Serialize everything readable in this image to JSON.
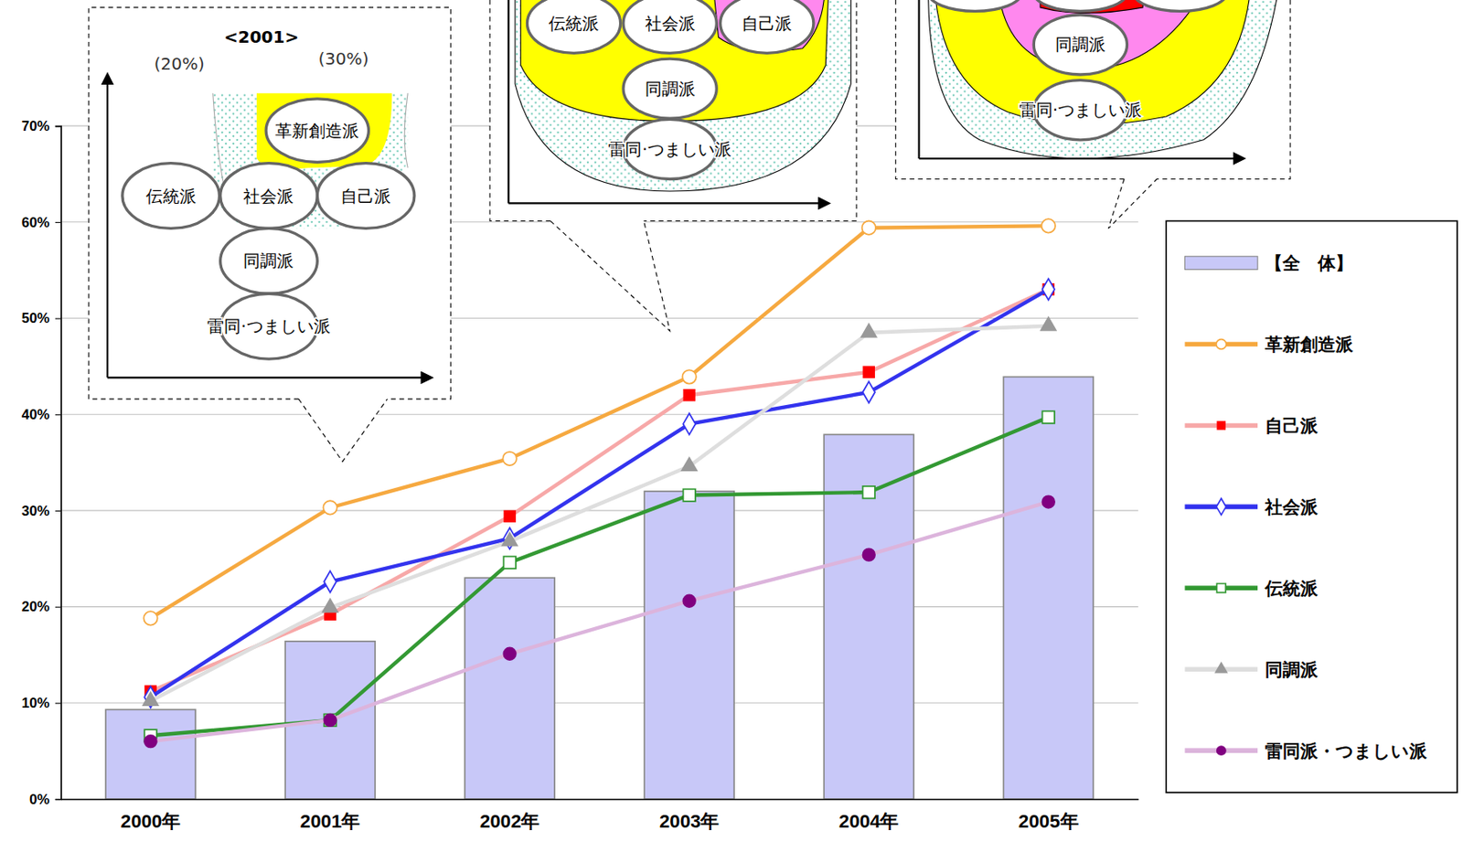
{
  "chart_data": {
    "type": "bar",
    "categories": [
      "2000年",
      "2001年",
      "2002年",
      "2003年",
      "2004年",
      "2005年"
    ],
    "ylim": [
      0,
      70
    ],
    "yticks": [
      {
        "value": 0,
        "label": "0%"
      },
      {
        "value": 10,
        "label": "10%"
      },
      {
        "value": 20,
        "label": "20%"
      },
      {
        "value": 30,
        "label": "30%"
      },
      {
        "value": 40,
        "label": "40%"
      },
      {
        "value": 50,
        "label": "50%"
      },
      {
        "value": 60,
        "label": "60%"
      },
      {
        "value": 70,
        "label": "70%"
      }
    ],
    "grid": true,
    "legend": "right",
    "series": [
      {
        "name": "【全　体】",
        "type": "bar",
        "color": "#c8c8f8",
        "values": [
          9.3,
          16.4,
          23.0,
          32.0,
          37.9,
          43.9
        ]
      },
      {
        "name": "革新創造派",
        "type": "line",
        "color": "#f6a940",
        "marker": "circle-open",
        "values": [
          18.8,
          30.3,
          35.4,
          43.9,
          59.4,
          59.6
        ]
      },
      {
        "name": "自己派",
        "type": "line",
        "color": "#f7a8a8",
        "marker": "square",
        "values": [
          11.2,
          19.2,
          29.4,
          42.0,
          44.4,
          53.0
        ]
      },
      {
        "name": "社会派",
        "type": "line",
        "color": "#3333ee",
        "marker": "diamond-open",
        "values": [
          10.6,
          22.6,
          27.1,
          39.0,
          42.3,
          53.0
        ]
      },
      {
        "name": "伝統派",
        "type": "line",
        "color": "#339933",
        "marker": "square-open",
        "values": [
          6.6,
          8.2,
          24.6,
          31.6,
          31.9,
          39.7
        ]
      },
      {
        "name": "同調派",
        "type": "line",
        "color": "#dedede",
        "marker": "triangle",
        "values": [
          10.2,
          19.9,
          26.8,
          34.6,
          48.5,
          49.2
        ]
      },
      {
        "name": "雷同派・つましい派",
        "type": "line",
        "color": "#dcb4dc",
        "marker": "circle",
        "values": [
          6.0,
          8.2,
          15.1,
          20.6,
          25.4,
          30.9
        ]
      }
    ],
    "annotations": [
      {
        "title": "<2001>",
        "notes": [
          "(20%)",
          "(30%)"
        ],
        "labels": [
          "革新創造派",
          "伝統派",
          "社会派",
          "自己派",
          "同調派",
          "雷同·つましい派"
        ]
      },
      {
        "labels": [
          "伝統派",
          "社会派",
          "自己派",
          "同調派",
          "雷同·つましい派"
        ]
      },
      {
        "labels": [
          "同調派",
          "雷同·つましい派"
        ]
      }
    ]
  }
}
